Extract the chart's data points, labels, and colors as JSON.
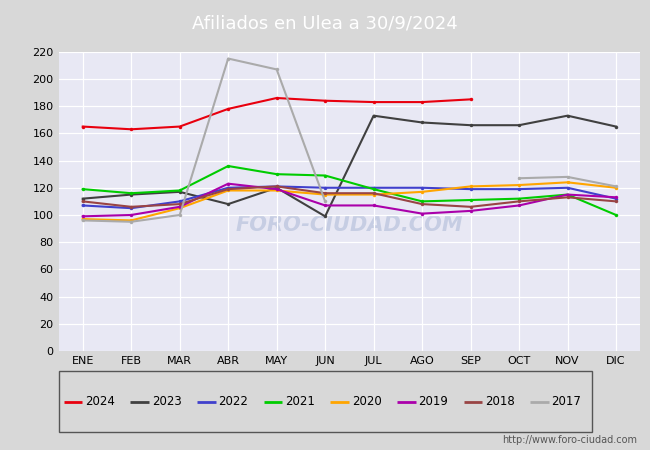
{
  "title": "Afiliados en Ulea a 30/9/2024",
  "months": [
    "ENE",
    "FEB",
    "MAR",
    "ABR",
    "MAY",
    "JUN",
    "JUL",
    "AGO",
    "SEP",
    "OCT",
    "NOV",
    "DIC"
  ],
  "ylim": [
    0,
    220
  ],
  "yticks": [
    0,
    20,
    40,
    60,
    80,
    100,
    120,
    140,
    160,
    180,
    200,
    220
  ],
  "series": [
    {
      "label": "2024",
      "color": "#e8000e",
      "data": [
        165,
        163,
        165,
        178,
        186,
        184,
        183,
        183,
        185,
        null,
        null,
        null
      ],
      "linewidth": 1.5
    },
    {
      "label": "2023",
      "color": "#404040",
      "data": [
        112,
        115,
        117,
        108,
        120,
        99,
        173,
        168,
        166,
        166,
        173,
        165
      ],
      "linewidth": 1.5
    },
    {
      "label": "2022",
      "color": "#4040cc",
      "data": [
        107,
        105,
        110,
        120,
        121,
        120,
        120,
        120,
        119,
        119,
        120,
        112
      ],
      "linewidth": 1.5
    },
    {
      "label": "2021",
      "color": "#00cc00",
      "data": [
        119,
        116,
        118,
        136,
        130,
        129,
        119,
        110,
        111,
        112,
        115,
        100
      ],
      "linewidth": 1.5
    },
    {
      "label": "2020",
      "color": "#ffa500",
      "data": [
        97,
        96,
        105,
        118,
        118,
        115,
        115,
        117,
        121,
        122,
        124,
        120
      ],
      "linewidth": 1.5
    },
    {
      "label": "2019",
      "color": "#aa00aa",
      "data": [
        99,
        100,
        106,
        123,
        119,
        107,
        107,
        101,
        103,
        107,
        115,
        113
      ],
      "linewidth": 1.5
    },
    {
      "label": "2018",
      "color": "#994444",
      "data": [
        110,
        106,
        108,
        119,
        121,
        116,
        116,
        108,
        106,
        110,
        113,
        110
      ],
      "linewidth": 1.5
    },
    {
      "label": "2017",
      "color": "#aaaaaa",
      "data": [
        96,
        95,
        100,
        215,
        207,
        110,
        null,
        null,
        null,
        127,
        128,
        121
      ],
      "linewidth": 1.5
    }
  ],
  "header_color": "#4472c4",
  "bg_color": "#d8d8d8",
  "plot_bg": "#e8e8f4",
  "grid_color": "#ffffff",
  "watermark": "FORO-CIUDAD.COM",
  "url": "http://www.foro-ciudad.com"
}
